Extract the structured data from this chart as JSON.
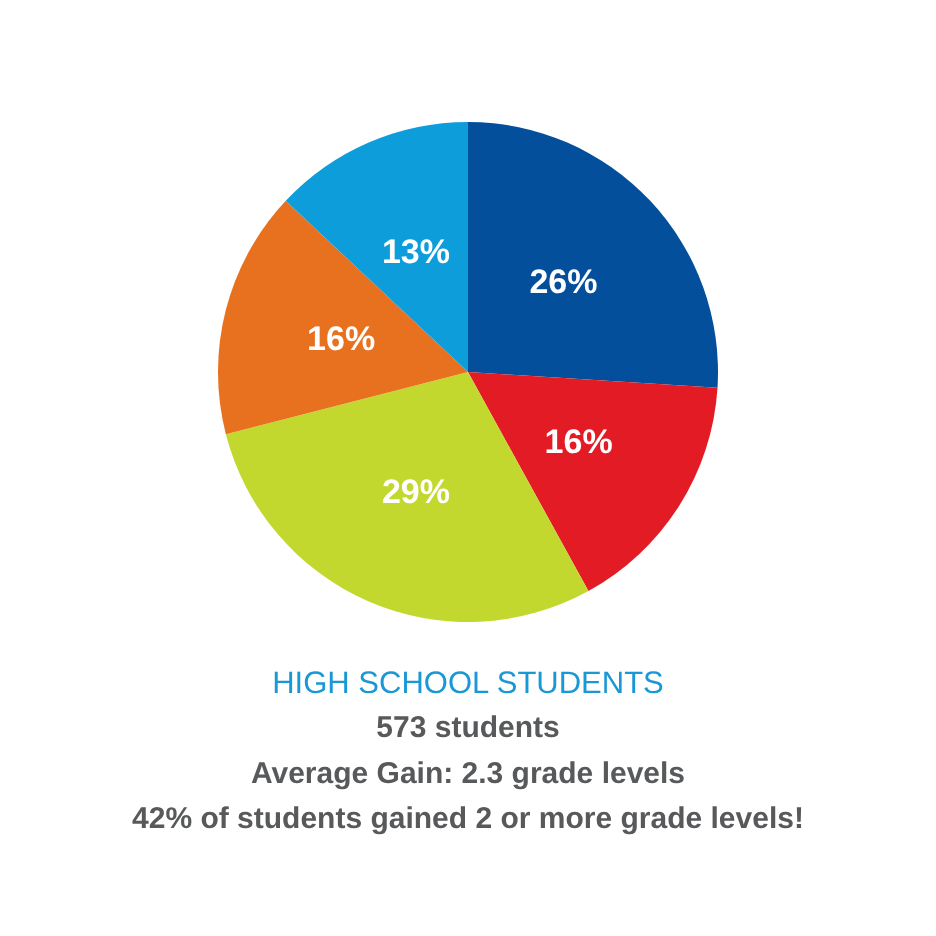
{
  "chart_data": {
    "type": "pie",
    "title": "HIGH SCHOOL STUDENTS",
    "subtitle": "573 students",
    "annotations": [
      "Average Gain: 2.3 grade levels",
      "42% of students gained 2 or more grade levels!"
    ],
    "categories": [
      null,
      null,
      null,
      null,
      null
    ],
    "values": [
      26,
      16,
      29,
      16,
      13
    ],
    "value_labels": [
      "26%",
      "16%",
      "29%",
      "16%",
      "13%"
    ],
    "colors": [
      "#034f9c",
      "#e21b24",
      "#c3d82f",
      "#e8711f",
      "#0e9ddb"
    ]
  }
}
